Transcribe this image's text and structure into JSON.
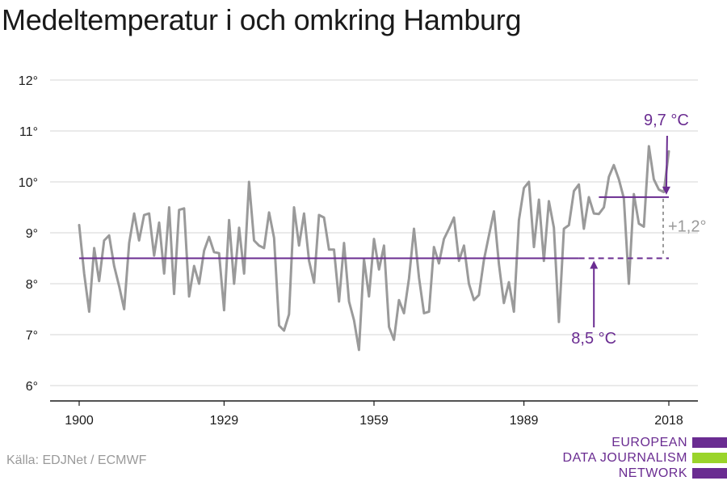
{
  "title": "Medeltemperatur i och omkring Hamburg",
  "source": "Källa: EDJNet / ECMWF",
  "logo": {
    "lines": [
      "EUROPEAN",
      "DATA JOURNALISM",
      "NETWORK"
    ],
    "colors": [
      "#6a2c91",
      "#9ad42a",
      "#6a2c91"
    ]
  },
  "chart_data": {
    "type": "line",
    "title": "Medeltemperatur i och omkring Hamburg",
    "xlabel": "",
    "ylabel": "",
    "xlim": [
      1900,
      2018
    ],
    "ylim": [
      6,
      12
    ],
    "x_ticks": [
      1900,
      1929,
      1959,
      1989,
      2018
    ],
    "y_ticks": [
      6,
      7,
      8,
      9,
      10,
      11,
      12
    ],
    "y_tick_suffix": "°",
    "grid": true,
    "series": [
      {
        "color": "#9a9a9a",
        "x": [
          1900,
          1901,
          1902,
          1903,
          1904,
          1905,
          1906,
          1907,
          1908,
          1909,
          1910,
          1911,
          1912,
          1913,
          1914,
          1915,
          1916,
          1917,
          1918,
          1919,
          1920,
          1921,
          1922,
          1923,
          1924,
          1925,
          1926,
          1927,
          1928,
          1929,
          1930,
          1931,
          1932,
          1933,
          1934,
          1935,
          1936,
          1937,
          1938,
          1939,
          1940,
          1941,
          1942,
          1943,
          1944,
          1945,
          1946,
          1947,
          1948,
          1949,
          1950,
          1951,
          1952,
          1953,
          1954,
          1955,
          1956,
          1957,
          1958,
          1959,
          1960,
          1961,
          1962,
          1963,
          1964,
          1965,
          1966,
          1967,
          1968,
          1969,
          1970,
          1971,
          1972,
          1973,
          1974,
          1975,
          1976,
          1977,
          1978,
          1979,
          1980,
          1981,
          1982,
          1983,
          1984,
          1985,
          1986,
          1987,
          1988,
          1989,
          1990,
          1991,
          1992,
          1993,
          1994,
          1995,
          1996,
          1997,
          1998,
          1999,
          2000,
          2001,
          2002,
          2003,
          2004,
          2005,
          2006,
          2007,
          2008,
          2009,
          2010,
          2011,
          2012,
          2013,
          2014,
          2015,
          2016,
          2017,
          2018
        ],
        "values": [
          9.15,
          8.2,
          7.45,
          8.7,
          8.05,
          8.85,
          8.95,
          8.35,
          7.95,
          7.5,
          8.8,
          9.38,
          8.85,
          9.35,
          9.38,
          8.55,
          9.2,
          8.2,
          9.5,
          7.8,
          9.45,
          9.48,
          7.75,
          8.35,
          8.0,
          8.65,
          8.92,
          8.62,
          8.6,
          7.48,
          9.25,
          8.0,
          9.1,
          8.2,
          10.0,
          8.85,
          8.75,
          8.7,
          9.4,
          8.9,
          7.18,
          7.08,
          7.4,
          9.5,
          8.75,
          9.38,
          8.45,
          8.02,
          9.35,
          9.3,
          8.67,
          8.67,
          7.65,
          8.8,
          7.65,
          7.28,
          6.7,
          8.48,
          7.75,
          8.88,
          8.28,
          8.75,
          7.15,
          6.9,
          7.68,
          7.42,
          8.1,
          9.08,
          8.12,
          7.42,
          7.45,
          8.72,
          8.4,
          8.88,
          9.08,
          9.3,
          8.45,
          8.75,
          8.0,
          7.68,
          7.78,
          8.47,
          8.95,
          9.42,
          8.38,
          7.62,
          8.03,
          7.45,
          9.25,
          9.88,
          10.0,
          8.72,
          9.65,
          8.45,
          9.62,
          9.1,
          7.25,
          9.08,
          9.15,
          9.82,
          9.95,
          9.08,
          9.7,
          9.38,
          9.37,
          9.5,
          10.1,
          10.33,
          10.05,
          9.68,
          8.0,
          9.76,
          9.18,
          9.12,
          10.7,
          10.05,
          9.85,
          9.8,
          10.6
        ]
      }
    ],
    "reference_lines": [
      {
        "label": "8,5 °C",
        "value": 8.5,
        "x_start": 1900,
        "x_end": 2000,
        "x_dashed_end": 2018,
        "color": "#6a2c91"
      },
      {
        "label": "9,7 °C",
        "value": 9.7,
        "x_start": 2004,
        "x_end": 2018,
        "color": "#6a2c91"
      }
    ],
    "difference": {
      "label": "+1,2°",
      "from": 8.5,
      "to": 9.7,
      "at_x": 2018,
      "color": "#9a9a9a"
    }
  }
}
